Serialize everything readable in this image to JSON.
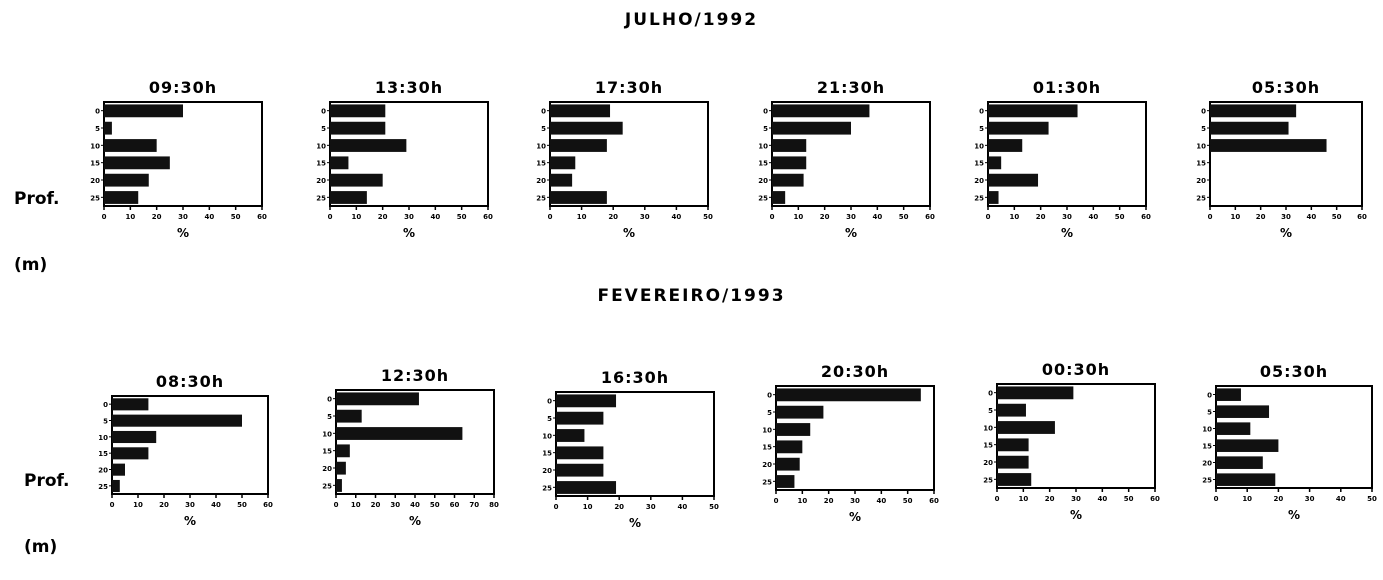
{
  "top_title": "JULHO/1992",
  "bottom_title": "FEVEREIRO/1993",
  "ylabel_lines": [
    "Prof.",
    "(m)"
  ],
  "colors": {
    "bar": "#111111",
    "frame": "#000000",
    "background": "#ffffff"
  },
  "chart_data": [
    {
      "type": "bar",
      "orientation": "horizontal",
      "group": "JULHO/1992",
      "title": "09:30h",
      "categories": [
        "0",
        "5",
        "10",
        "15",
        "20",
        "25"
      ],
      "values": [
        30,
        3,
        20,
        25,
        17,
        13
      ],
      "xlim": [
        0,
        60
      ],
      "xticks": [
        "0",
        "10",
        "20",
        "30",
        "40",
        "50",
        "60"
      ],
      "xlabel": "%"
    },
    {
      "type": "bar",
      "orientation": "horizontal",
      "group": "JULHO/1992",
      "title": "13:30h",
      "categories": [
        "0",
        "5",
        "10",
        "15",
        "20",
        "25"
      ],
      "values": [
        21,
        21,
        29,
        7,
        20,
        14
      ],
      "xlim": [
        0,
        60
      ],
      "xticks": [
        "0",
        "10",
        "20",
        "30",
        "40",
        "50",
        "60"
      ],
      "xlabel": "%"
    },
    {
      "type": "bar",
      "orientation": "horizontal",
      "group": "JULHO/1992",
      "title": "17:30h",
      "categories": [
        "0",
        "5",
        "10",
        "15",
        "20",
        "25"
      ],
      "values": [
        19,
        23,
        18,
        8,
        7,
        18
      ],
      "xlim": [
        0,
        50
      ],
      "xticks": [
        "0",
        "10",
        "20",
        "30",
        "40",
        "50"
      ],
      "xlabel": "%"
    },
    {
      "type": "bar",
      "orientation": "horizontal",
      "group": "JULHO/1992",
      "title": "21:30h",
      "categories": [
        "0",
        "5",
        "10",
        "15",
        "20",
        "25"
      ],
      "values": [
        37,
        30,
        13,
        13,
        12,
        5
      ],
      "xlim": [
        0,
        60
      ],
      "xticks": [
        "0",
        "10",
        "20",
        "30",
        "40",
        "50",
        "60"
      ],
      "xlabel": "%"
    },
    {
      "type": "bar",
      "orientation": "horizontal",
      "group": "JULHO/1992",
      "title": "01:30h",
      "categories": [
        "0",
        "5",
        "10",
        "15",
        "20",
        "25"
      ],
      "values": [
        34,
        23,
        13,
        5,
        19,
        4
      ],
      "xlim": [
        0,
        60
      ],
      "xticks": [
        "0",
        "10",
        "20",
        "30",
        "40",
        "50",
        "60"
      ],
      "xlabel": "%"
    },
    {
      "type": "bar",
      "orientation": "horizontal",
      "group": "JULHO/1992",
      "title": "05:30h",
      "categories": [
        "0",
        "5",
        "10",
        "15",
        "20",
        "25"
      ],
      "values": [
        34,
        31,
        46,
        0,
        0,
        0
      ],
      "xlim": [
        0,
        60
      ],
      "xticks": [
        "0",
        "10",
        "20",
        "30",
        "40",
        "50",
        "60"
      ],
      "xlabel": "%"
    },
    {
      "type": "bar",
      "orientation": "horizontal",
      "group": "FEVEREIRO/1993",
      "title": "08:30h",
      "categories": [
        "0",
        "5",
        "10",
        "15",
        "20",
        "25"
      ],
      "values": [
        14,
        50,
        17,
        14,
        5,
        3
      ],
      "xlim": [
        0,
        60
      ],
      "xticks": [
        "0",
        "10",
        "20",
        "30",
        "40",
        "50",
        "60"
      ],
      "xlabel": "%"
    },
    {
      "type": "bar",
      "orientation": "horizontal",
      "group": "FEVEREIRO/1993",
      "title": "12:30h",
      "categories": [
        "0",
        "5",
        "10",
        "15",
        "20",
        "25"
      ],
      "values": [
        42,
        13,
        64,
        7,
        5,
        3
      ],
      "xlim": [
        0,
        80
      ],
      "xticks": [
        "0",
        "10",
        "20",
        "30",
        "40",
        "50",
        "60",
        "70",
        "80"
      ],
      "xlabel": "%"
    },
    {
      "type": "bar",
      "orientation": "horizontal",
      "group": "FEVEREIRO/1993",
      "title": "16:30h",
      "categories": [
        "0",
        "5",
        "10",
        "15",
        "20",
        "25"
      ],
      "values": [
        19,
        15,
        9,
        15,
        15,
        19
      ],
      "xlim": [
        0,
        50
      ],
      "xticks": [
        "0",
        "10",
        "20",
        "30",
        "40",
        "50"
      ],
      "xlabel": "%"
    },
    {
      "type": "bar",
      "orientation": "horizontal",
      "group": "FEVEREIRO/1993",
      "title": "20:30h",
      "categories": [
        "0",
        "5",
        "10",
        "15",
        "20",
        "25"
      ],
      "values": [
        55,
        18,
        13,
        10,
        9,
        7
      ],
      "xlim": [
        0,
        60
      ],
      "xticks": [
        "0",
        "10",
        "20",
        "30",
        "40",
        "50",
        "60"
      ],
      "xlabel": "%"
    },
    {
      "type": "bar",
      "orientation": "horizontal",
      "group": "FEVEREIRO/1993",
      "title": "00:30h",
      "categories": [
        "0",
        "5",
        "10",
        "15",
        "20",
        "25"
      ],
      "values": [
        29,
        11,
        22,
        12,
        12,
        13
      ],
      "xlim": [
        0,
        60
      ],
      "xticks": [
        "0",
        "10",
        "20",
        "30",
        "40",
        "50",
        "60"
      ],
      "xlabel": "%"
    },
    {
      "type": "bar",
      "orientation": "horizontal",
      "group": "FEVEREIRO/1993",
      "title": "05:30h",
      "categories": [
        "0",
        "5",
        "10",
        "15",
        "20",
        "25"
      ],
      "values": [
        8,
        17,
        11,
        20,
        15,
        19
      ],
      "xlim": [
        0,
        50
      ],
      "xticks": [
        "0",
        "10",
        "20",
        "30",
        "40",
        "50"
      ],
      "xlabel": "%"
    }
  ]
}
